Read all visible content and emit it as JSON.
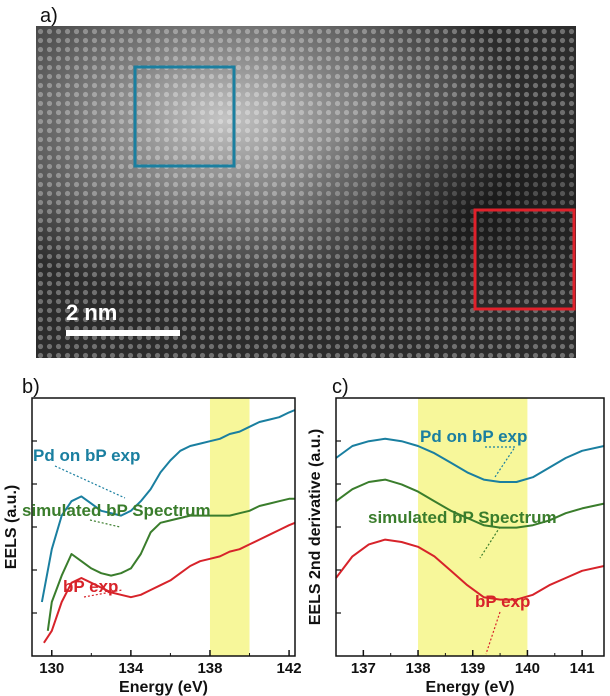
{
  "figure": {
    "panel_a": {
      "letter": "a)",
      "scalebar_label": "2 nm",
      "box_colors": {
        "pd_region": "#1a7fa0",
        "bp_region": "#e0212b"
      }
    },
    "panel_b": {
      "letter": "b)"
    },
    "panel_c": {
      "letter": "c)"
    },
    "colors": {
      "pd": "#1a7fa0",
      "sim": "#3a7d2c",
      "bp": "#d7232a",
      "highlight": "#f7f79a"
    }
  },
  "chart_data": [
    {
      "type": "line",
      "panel": "b)",
      "xlabel": "Energy (eV)",
      "ylabel": "EELS (a.u.)",
      "xlim": [
        129,
        142.3
      ],
      "ylim": [
        0,
        1
      ],
      "xticks": [
        130,
        134,
        138,
        142
      ],
      "yticks_labeled": false,
      "highlight_band": [
        138,
        140
      ],
      "series": [
        {
          "name": "Pd on bP exp",
          "color": "#1a7fa0",
          "x": [
            129.5,
            130,
            130.5,
            131,
            131.5,
            132,
            132.5,
            133,
            133.5,
            134,
            134.5,
            135,
            135.5,
            136,
            136.5,
            137,
            137.5,
            138,
            138.5,
            139,
            139.5,
            140,
            140.5,
            141,
            141.5,
            142,
            142.3
          ],
          "y": [
            0.2,
            0.42,
            0.56,
            0.62,
            0.64,
            0.61,
            0.58,
            0.57,
            0.56,
            0.58,
            0.62,
            0.67,
            0.74,
            0.79,
            0.83,
            0.85,
            0.86,
            0.87,
            0.88,
            0.9,
            0.91,
            0.93,
            0.95,
            0.96,
            0.97,
            0.99,
            1.0
          ]
        },
        {
          "name": "simulated bP Spectrum",
          "color": "#3a7d2c",
          "x": [
            129.8,
            130,
            130.5,
            131,
            131.5,
            132,
            132.5,
            133,
            133.5,
            134,
            134.5,
            135,
            135.5,
            136,
            136.5,
            137,
            137.5,
            138,
            138.5,
            139,
            139.5,
            140,
            140.5,
            141,
            141.5,
            142,
            142.3
          ],
          "y": [
            0.08,
            0.2,
            0.31,
            0.4,
            0.37,
            0.34,
            0.32,
            0.31,
            0.32,
            0.34,
            0.4,
            0.49,
            0.53,
            0.54,
            0.55,
            0.56,
            0.56,
            0.56,
            0.56,
            0.56,
            0.57,
            0.58,
            0.6,
            0.61,
            0.62,
            0.63,
            0.63
          ]
        },
        {
          "name": "bP exp",
          "color": "#d7232a",
          "x": [
            129.6,
            130,
            130.5,
            131,
            131.5,
            132,
            132.5,
            133,
            133.5,
            134,
            134.5,
            135,
            135.5,
            136,
            136.5,
            137,
            137.5,
            138,
            138.5,
            139,
            139.5,
            140,
            140.5,
            141,
            141.5,
            142,
            142.3
          ],
          "y": [
            0.03,
            0.08,
            0.2,
            0.28,
            0.3,
            0.28,
            0.26,
            0.24,
            0.23,
            0.22,
            0.23,
            0.25,
            0.27,
            0.29,
            0.32,
            0.35,
            0.37,
            0.38,
            0.39,
            0.41,
            0.42,
            0.44,
            0.46,
            0.48,
            0.5,
            0.52,
            0.53
          ]
        }
      ],
      "annotations": [
        "Pd on bP exp",
        "simulated bP Spectrum",
        "bP exp"
      ]
    },
    {
      "type": "line",
      "panel": "c)",
      "xlabel": "Energy (eV)",
      "ylabel": "EELS 2nd derivative (a.u.)",
      "xlim": [
        136.5,
        141.4
      ],
      "ylim": [
        0,
        1
      ],
      "xticks": [
        137,
        138,
        139,
        140,
        141
      ],
      "yticks_labeled": false,
      "highlight_band": [
        138,
        140
      ],
      "series": [
        {
          "name": "Pd on bP exp",
          "color": "#1a7fa0",
          "x": [
            136.5,
            136.8,
            137.1,
            137.4,
            137.7,
            138,
            138.3,
            138.6,
            138.9,
            139.2,
            139.5,
            139.8,
            140.1,
            140.4,
            140.7,
            141,
            141.4
          ],
          "y": [
            0.8,
            0.85,
            0.87,
            0.88,
            0.87,
            0.85,
            0.82,
            0.78,
            0.74,
            0.71,
            0.7,
            0.7,
            0.72,
            0.76,
            0.8,
            0.83,
            0.85
          ]
        },
        {
          "name": "simulated bP Spectrum",
          "color": "#3a7d2c",
          "x": [
            136.5,
            136.8,
            137.1,
            137.4,
            137.7,
            138,
            138.3,
            138.6,
            138.9,
            139.2,
            139.5,
            139.8,
            140.1,
            140.4,
            140.7,
            141,
            141.4
          ],
          "y": [
            0.62,
            0.67,
            0.7,
            0.71,
            0.69,
            0.66,
            0.62,
            0.58,
            0.55,
            0.52,
            0.51,
            0.51,
            0.52,
            0.54,
            0.57,
            0.59,
            0.61
          ]
        },
        {
          "name": "bP exp",
          "color": "#d7232a",
          "x": [
            136.5,
            136.8,
            137.1,
            137.4,
            137.7,
            138,
            138.3,
            138.6,
            138.9,
            139.2,
            139.5,
            139.8,
            140.1,
            140.4,
            140.7,
            141,
            141.4
          ],
          "y": [
            0.3,
            0.39,
            0.44,
            0.46,
            0.45,
            0.43,
            0.39,
            0.33,
            0.27,
            0.22,
            0.21,
            0.21,
            0.23,
            0.27,
            0.3,
            0.33,
            0.35
          ]
        }
      ],
      "annotations": [
        "Pd on bP exp",
        "simulated bP Spectrum",
        "bP exp"
      ]
    }
  ]
}
